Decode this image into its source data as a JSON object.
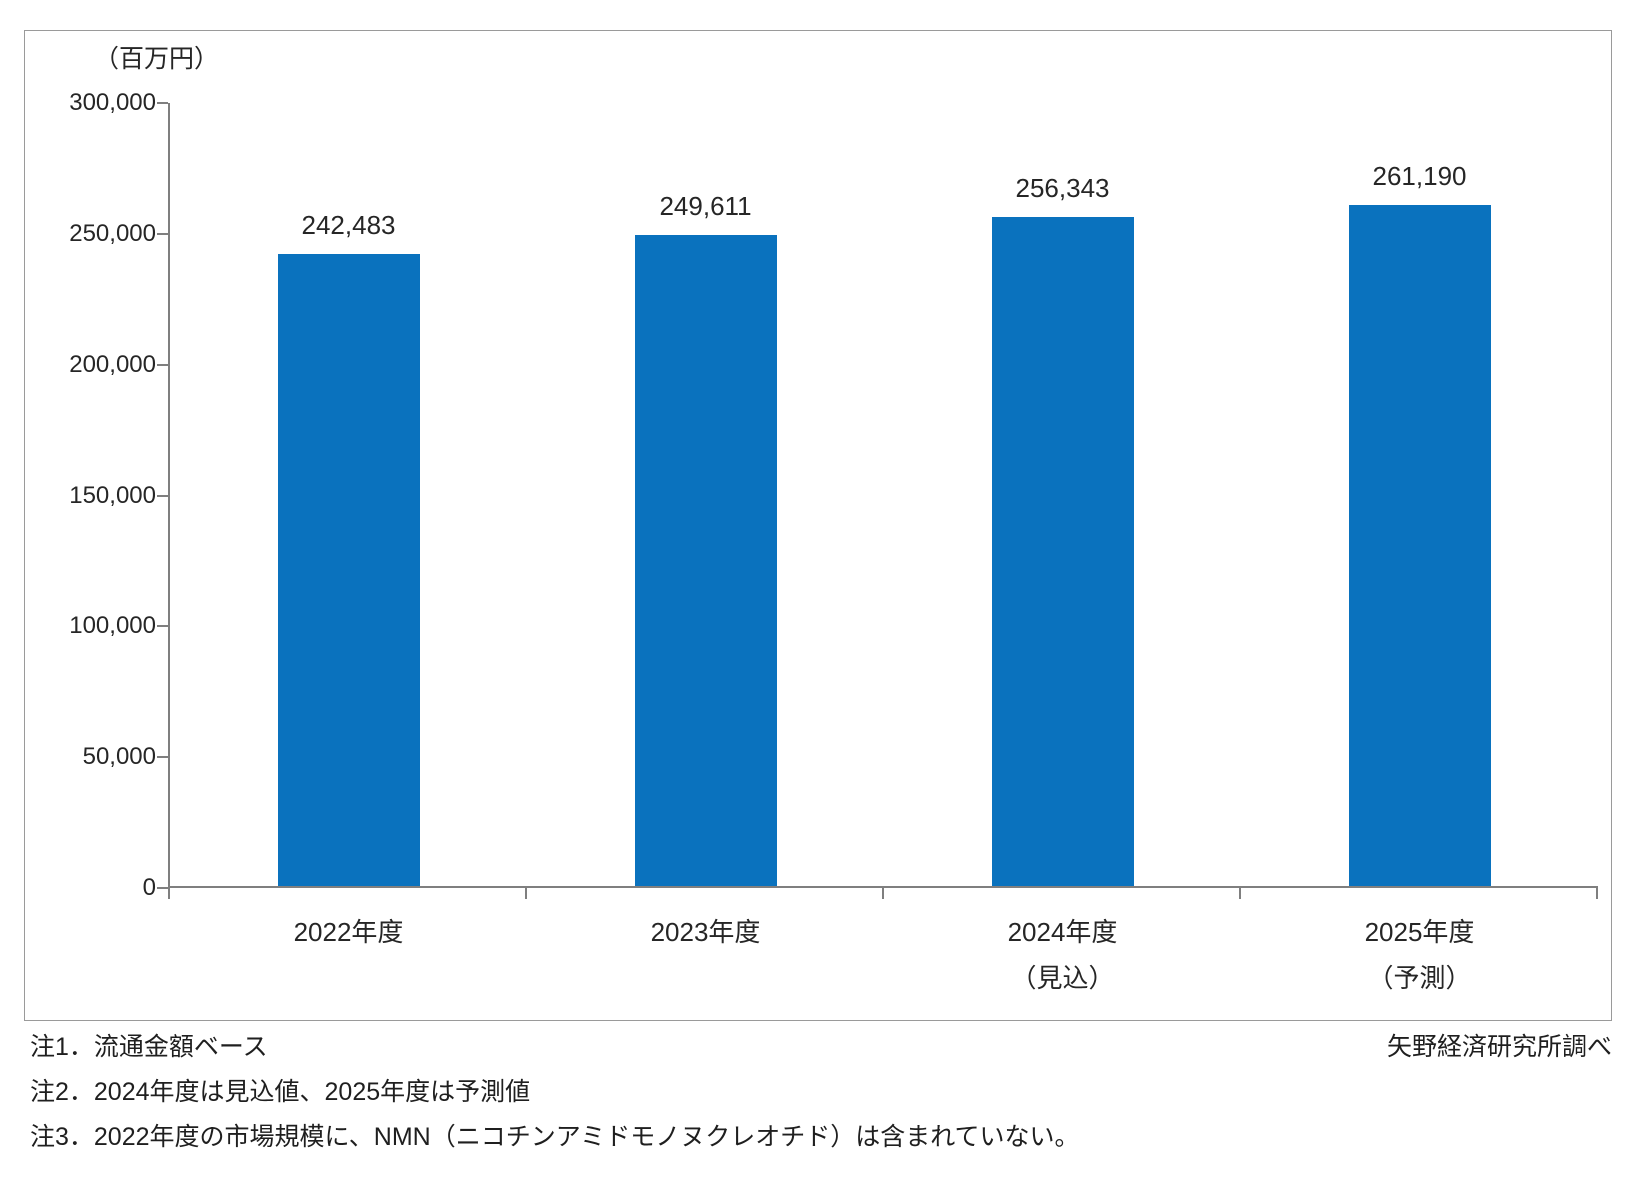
{
  "chart_data": {
    "type": "bar",
    "title": "",
    "unit_label": "（百万円）",
    "categories": [
      "2022年度",
      "2023年度",
      "2024年度（見込）",
      "2025年度（予測）"
    ],
    "category_lines": [
      [
        "2022年度"
      ],
      [
        "2023年度"
      ],
      [
        "2024年度",
        "（見込）"
      ],
      [
        "2025年度",
        "（予測）"
      ]
    ],
    "values": [
      242483,
      249611,
      256343,
      261190
    ],
    "value_labels": [
      "242,483",
      "249,611",
      "256,343",
      "261,190"
    ],
    "ylabel": "（百万円）",
    "xlabel": "",
    "ylim": [
      0,
      300000
    ],
    "ytick_step": 50000,
    "ytick_labels": [
      "0",
      "50,000",
      "100,000",
      "150,000",
      "200,000",
      "250,000",
      "300,000"
    ],
    "grid": false,
    "legend_position": "none",
    "bar_color": "#0A72BE",
    "axis_color": "#7f7f7f"
  },
  "notes": [
    "注1．流通金額ベース",
    "注2．2024年度は見込値、2025年度は予測値",
    "注3．2022年度の市場規模に、NMN（ニコチンアミドモノヌクレオチド）は含まれていない。"
  ],
  "source": "矢野経済研究所調べ"
}
